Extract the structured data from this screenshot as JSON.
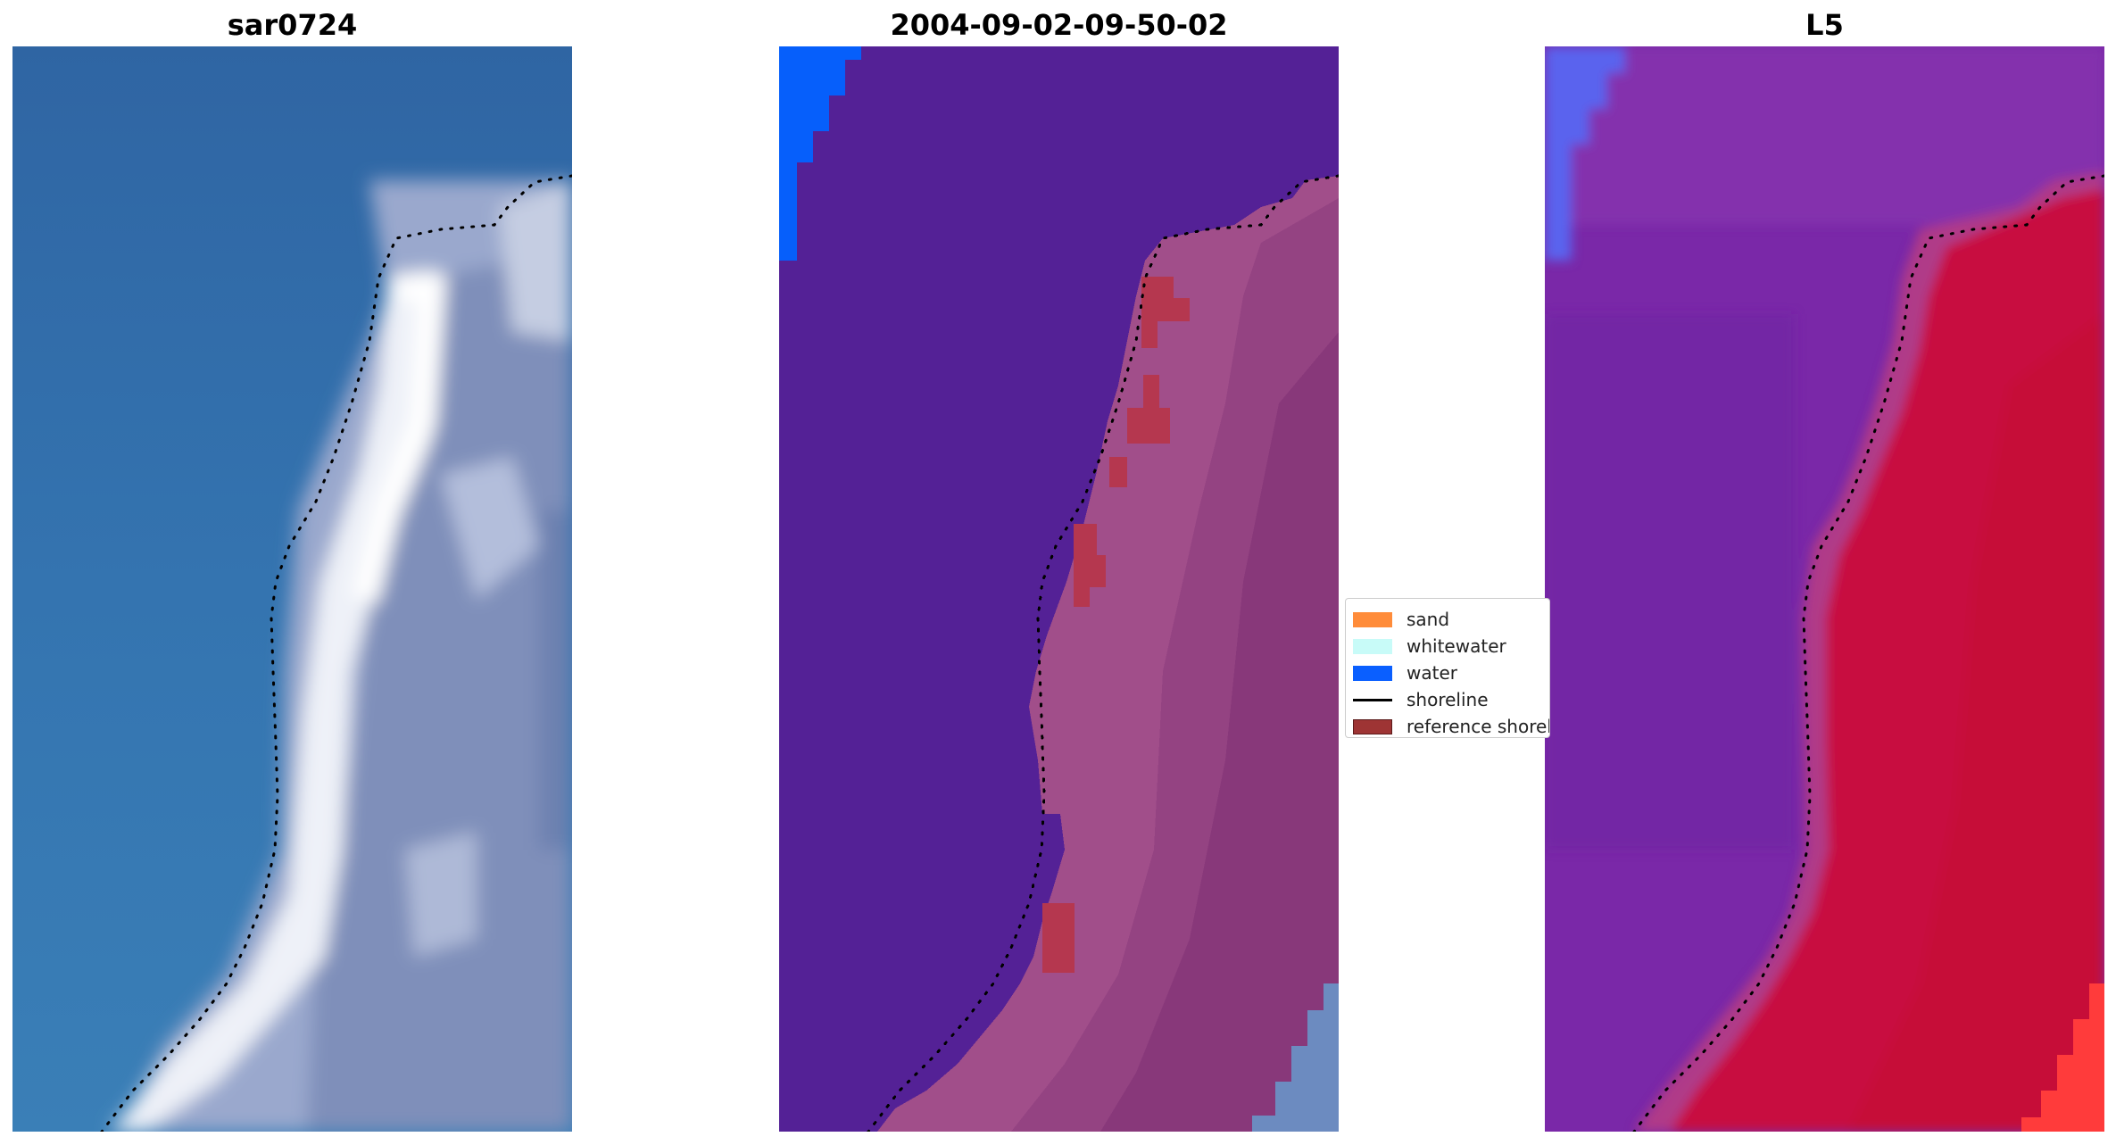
{
  "panels": [
    {
      "title": "sar0724"
    },
    {
      "title": "2004-09-02-09-50-02"
    },
    {
      "title": "L5"
    }
  ],
  "legend": {
    "items": [
      {
        "label": "sand",
        "color": "#ff8c3a",
        "kind": "patch"
      },
      {
        "label": "whitewater",
        "color": "#c8fbf8",
        "kind": "patch"
      },
      {
        "label": "water",
        "color": "#0a5fff",
        "kind": "patch"
      },
      {
        "label": "shoreline",
        "color": "#000000",
        "kind": "line"
      },
      {
        "label": "reference shoreline",
        "color": "#9e3434",
        "kind": "patch"
      }
    ]
  },
  "colors": {
    "rgb_water": "#3472ad",
    "rgb_land": "#a9b5d3",
    "rgb_sand": "#e8ecf5",
    "class_water_bg": "#542196",
    "class_land": "#8a3a77",
    "class_water_blue": "#065ffb",
    "class_reference": "#b5374f",
    "index_water": "#7a28a8",
    "index_land": "#c8103f",
    "index_blue": "#5a63ee",
    "index_red": "#ff3b3b"
  }
}
